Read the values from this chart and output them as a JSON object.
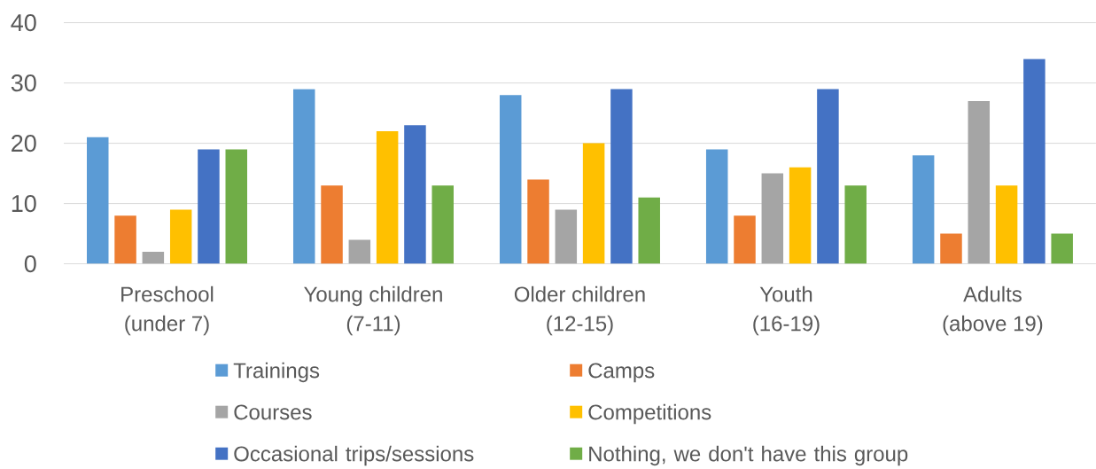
{
  "chart_data": {
    "type": "bar",
    "categories": [
      "Preschool (under 7)",
      "Young children (7-11)",
      "Older children (12-15)",
      "Youth (16-19)",
      "Adults (above 19)"
    ],
    "series": [
      {
        "name": "Trainings",
        "color": "#5b9bd5",
        "values": [
          21,
          29,
          28,
          19,
          18
        ]
      },
      {
        "name": "Camps",
        "color": "#ed7d31",
        "values": [
          8,
          13,
          14,
          8,
          5
        ]
      },
      {
        "name": "Courses",
        "color": "#a5a5a5",
        "values": [
          2,
          4,
          9,
          15,
          27
        ]
      },
      {
        "name": "Competitions",
        "color": "#ffc000",
        "values": [
          9,
          22,
          20,
          16,
          13
        ]
      },
      {
        "name": "Occasional trips/sessions",
        "color": "#4472c4",
        "values": [
          19,
          23,
          29,
          29,
          34
        ]
      },
      {
        "name": "Nothing, we don't have this group",
        "color": "#70ad47",
        "values": [
          19,
          13,
          11,
          13,
          5
        ]
      }
    ],
    "ylim": [
      0,
      40
    ],
    "yticks": [
      0,
      10,
      20,
      30,
      40
    ],
    "grid": "y",
    "legend": "bottom"
  }
}
